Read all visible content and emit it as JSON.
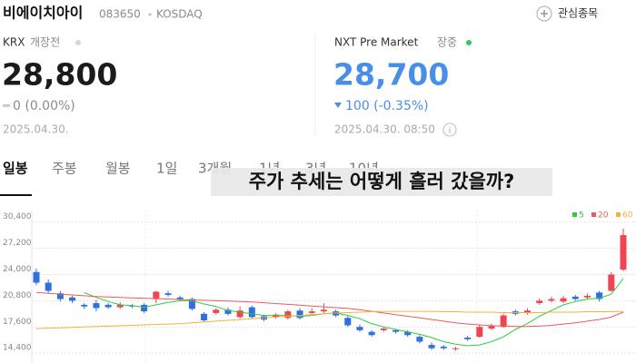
{
  "header": {
    "title": "비에이치아이",
    "code": "083650",
    "market": "KOSDAQ",
    "watch_button": "관심종목"
  },
  "krx": {
    "label": "KRX",
    "status": "개장전",
    "price": "28,800",
    "change": "0 (0.00%)",
    "date": "2025.04.30."
  },
  "nxt": {
    "label": "NXT Pre Market",
    "status": "장중",
    "price": "28,700",
    "change": "100 (-0.35%)",
    "date": "2025.04.30. 08:50"
  },
  "tabs": [
    "일봉",
    "주봉",
    "월봉",
    "1일",
    "3개월",
    "1년",
    "3년",
    "10년"
  ],
  "caption": "주가 추세는 어떻게 흘러 갔을까?",
  "chart_data": {
    "type": "candlestick",
    "up_color": "#f04452",
    "down_color": "#2f6fe0",
    "open": [
      24300,
      23000,
      21700,
      21200,
      20300,
      20500,
      20300,
      20000,
      20200,
      20300,
      21000,
      21700,
      21200,
      21000,
      19200,
      19300,
      19700,
      18800,
      20000,
      18900,
      18800,
      18700,
      19600,
      19300,
      19500,
      19500,
      18700,
      17600,
      17000,
      17200,
      17200,
      17000,
      16400,
      15400,
      15200,
      14900,
      16300,
      16400,
      17400,
      17600,
      19500,
      19300,
      20500,
      20800,
      20700,
      21300,
      21200,
      21800,
      22000,
      24600
    ],
    "high": [
      24700,
      23400,
      22000,
      21400,
      20500,
      20900,
      20500,
      20600,
      20400,
      20500,
      22000,
      22000,
      21400,
      21200,
      19400,
      19900,
      20000,
      20100,
      20200,
      19100,
      19300,
      19700,
      19900,
      19900,
      20500,
      19700,
      18900,
      17900,
      17200,
      17600,
      17300,
      17200,
      16600,
      15700,
      15400,
      15200,
      16500,
      17800,
      18000,
      19200,
      19700,
      19900,
      21100,
      21300,
      21400,
      21500,
      21700,
      22000,
      24300,
      29600
    ],
    "low": [
      22700,
      21700,
      20700,
      20500,
      19800,
      19500,
      19800,
      19800,
      19900,
      19300,
      20500,
      21300,
      20800,
      19600,
      18200,
      19100,
      19000,
      18600,
      18600,
      18300,
      18600,
      18500,
      18500,
      19100,
      19300,
      18800,
      17600,
      17000,
      16400,
      17000,
      16800,
      16400,
      15600,
      14800,
      14800,
      14700,
      15900,
      16300,
      17200,
      17500,
      19000,
      19100,
      20300,
      20600,
      20500,
      20800,
      21000,
      20700,
      21900,
      24400
    ],
    "close": [
      23000,
      22000,
      21000,
      20800,
      20100,
      19900,
      20000,
      20300,
      20100,
      19500,
      21900,
      21500,
      21000,
      19800,
      18400,
      19700,
      19200,
      19600,
      18800,
      18500,
      19100,
      19500,
      18700,
      19500,
      19700,
      19000,
      17800,
      17200,
      16600,
      17400,
      17000,
      16600,
      15800,
      15000,
      15000,
      15000,
      16100,
      17600,
      17700,
      19000,
      19200,
      19600,
      20800,
      21000,
      21100,
      21000,
      21400,
      21000,
      24000,
      28800
    ],
    "series": [
      {
        "name": "5",
        "color": "#2ecc40",
        "values": [
          null,
          null,
          null,
          null,
          21800,
          21200,
          20700,
          20300,
          20200,
          20000,
          20300,
          20600,
          20800,
          20800,
          20400,
          20100,
          19600,
          19400,
          19200,
          19000,
          19000,
          19000,
          18900,
          19000,
          19200,
          19300,
          19000,
          18600,
          18000,
          17600,
          17300,
          17000,
          16700,
          16300,
          15800,
          15500,
          15300,
          15400,
          15800,
          16400,
          17300,
          18000,
          18900,
          19600,
          20300,
          20700,
          21000,
          21100,
          21600,
          23500
        ]
      },
      {
        "name": "20",
        "color": "#f05a5a",
        "values": [
          21800,
          21700,
          21600,
          21500,
          21400,
          21300,
          21250,
          21200,
          21150,
          21100,
          21050,
          21000,
          20950,
          20900,
          20850,
          20800,
          20750,
          20700,
          20650,
          20550,
          20450,
          20350,
          20250,
          20150,
          20050,
          19950,
          19850,
          19700,
          19500,
          19300,
          19100,
          18900,
          18700,
          18500,
          18300,
          18100,
          17950,
          17850,
          17750,
          17700,
          17650,
          17650,
          17700,
          17800,
          17950,
          18100,
          18300,
          18500,
          18800,
          19400
        ]
      },
      {
        "name": "60",
        "color": "#f5b041",
        "values": [
          17400,
          17450,
          17500,
          17550,
          17600,
          17650,
          17700,
          17750,
          17800,
          17850,
          17900,
          17950,
          18000,
          18100,
          18200,
          18300,
          18400,
          18500,
          18600,
          18700,
          18800,
          18900,
          19000,
          19100,
          19200,
          19300,
          19350,
          19400,
          19450,
          19500,
          19500,
          19500,
          19500,
          19500,
          19450,
          19450,
          19400,
          19400,
          19400,
          19350,
          19350,
          19350,
          19350,
          19400,
          19400,
          19400,
          19450,
          19450,
          19450,
          19500
        ]
      }
    ],
    "ylim": [
      13200,
      31800
    ],
    "yticks": [
      {
        "value": 14400,
        "label": "14,400"
      },
      {
        "value": 17600,
        "label": "17,600"
      },
      {
        "value": 20800,
        "label": "20,800"
      },
      {
        "value": 24000,
        "label": "24,000"
      },
      {
        "value": 27200,
        "label": "27,200"
      },
      {
        "value": 30400,
        "label": "30,400"
      }
    ],
    "grid": true
  }
}
